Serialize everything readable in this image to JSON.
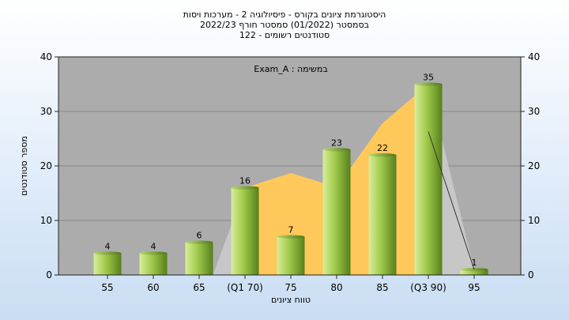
{
  "chart_data": {
    "type": "bar",
    "title_lines": [
      "היסטוגרמת ציונים בקורס - פיסיולוגיה 2 - מערכות ויסות",
      "בסמסטר  (01/2022)  סמסטר חורף 2022/23",
      "סטודנטים רשומים - 122"
    ],
    "legend": "Exam_A : במשימה",
    "categories": [
      "55",
      "60",
      "65",
      "(Q1 70)",
      "75",
      "80",
      "85",
      "(Q3 90)",
      "95"
    ],
    "values": [
      4,
      4,
      6,
      16,
      7,
      23,
      22,
      35,
      1
    ],
    "xlabel": "טווח ציונים",
    "ylabel": "מספר סטודנטים",
    "ylim": [
      0,
      40
    ],
    "yticks": [
      0,
      10,
      20,
      30,
      40
    ],
    "grid": true,
    "colors": {
      "bar_light": "#d8ee9a",
      "bar_mid": "#9fc94a",
      "bar_dark": "#567f1c",
      "area_gray": "#c7c7c7",
      "area_yellow": "#ffc85a",
      "plot_bg": "#acacac",
      "grid": "#7a7a7a",
      "trend_line": "#333333"
    }
  }
}
